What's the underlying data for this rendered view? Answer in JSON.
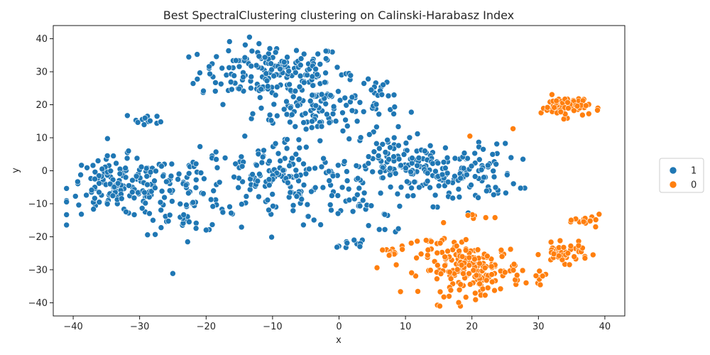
{
  "chart_data": {
    "type": "scatter",
    "title": "Best SpectralClustering clustering on Calinski-Harabasz Index",
    "xlabel": "x",
    "ylabel": "y",
    "xlim": [
      -43,
      43
    ],
    "ylim": [
      -44,
      44
    ],
    "xticks": [
      -40,
      -30,
      -20,
      -10,
      0,
      10,
      20,
      30,
      40
    ],
    "yticks": [
      -40,
      -30,
      -20,
      -10,
      0,
      10,
      20,
      30,
      40
    ],
    "legend_placement": "right (outside plot)",
    "grid": false,
    "series": [
      {
        "name": "1",
        "color": "#1f77b4",
        "clusters": [
          {
            "cx": -10,
            "cy": 30,
            "sx": 5.5,
            "sy": 4.2,
            "n": 170
          },
          {
            "cx": -3,
            "cy": 19,
            "sx": 5,
            "sy": 4.5,
            "n": 120
          },
          {
            "cx": 6,
            "cy": 23,
            "sx": 2.5,
            "sy": 2.5,
            "n": 15
          },
          {
            "cx": -33,
            "cy": -5,
            "sx": 4.2,
            "sy": 4.5,
            "n": 150
          },
          {
            "cx": -23,
            "cy": -7,
            "sx": 3.5,
            "sy": 6,
            "n": 80
          },
          {
            "cx": -9,
            "cy": -3,
            "sx": 6,
            "sy": 6,
            "n": 150
          },
          {
            "cx": 3,
            "cy": -5,
            "sx": 4,
            "sy": 6,
            "n": 50
          },
          {
            "cx": 7,
            "cy": 4,
            "sx": 3,
            "sy": 4,
            "n": 50
          },
          {
            "cx": 17,
            "cy": -1,
            "sx": 4.8,
            "sy": 4.5,
            "n": 150
          },
          {
            "cx": -29,
            "cy": 15.5,
            "sx": 1.5,
            "sy": 1,
            "n": 12
          },
          {
            "cx": 2,
            "cy": -22,
            "sx": 1.5,
            "sy": 0.6,
            "n": 10
          },
          {
            "cx": 8,
            "cy": -18,
            "sx": 1,
            "sy": 0.5,
            "n": 4
          }
        ]
      },
      {
        "name": "0",
        "color": "#ff7f0e",
        "clusters": [
          {
            "cx": 20,
            "cy": -30,
            "sx": 3.8,
            "sy": 3.8,
            "n": 190
          },
          {
            "cx": 34,
            "cy": 19.5,
            "sx": 1.8,
            "sy": 1.6,
            "n": 70
          },
          {
            "cx": 34,
            "cy": -25,
            "sx": 1.8,
            "sy": 1.4,
            "n": 45
          },
          {
            "cx": 37.5,
            "cy": -15,
            "sx": 1,
            "sy": 0.8,
            "n": 18
          },
          {
            "cx": 14,
            "cy": -23,
            "sx": 2,
            "sy": 2.5,
            "n": 15
          },
          {
            "cx": 7.5,
            "cy": -25,
            "sx": 1.2,
            "sy": 1.2,
            "n": 12
          },
          {
            "cx": 30.5,
            "cy": -32,
            "sx": 0.6,
            "sy": 1.2,
            "n": 8
          },
          {
            "cx": 20.5,
            "cy": -14,
            "sx": 1,
            "sy": 0.5,
            "n": 6
          },
          {
            "cx": 26,
            "cy": 12.8,
            "sx": 0.1,
            "sy": 0.1,
            "n": 1
          },
          {
            "cx": 19.8,
            "cy": 10.5,
            "sx": 0.1,
            "sy": 0.1,
            "n": 1
          }
        ]
      }
    ]
  }
}
